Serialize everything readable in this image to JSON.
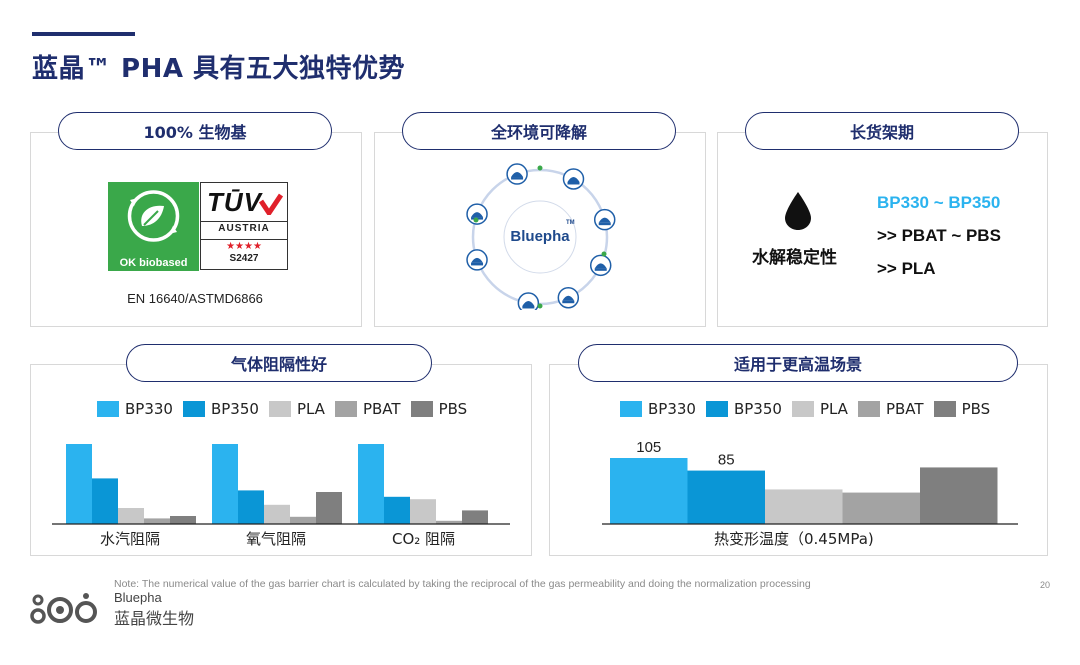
{
  "title": "蓝晶™ PHA 具有五大独特优势",
  "panels": {
    "biobased": {
      "label": "100% 生物基",
      "badge_text": "OK biobased",
      "tuv_top": "TŪV",
      "tuv_country": "AUSTRIA",
      "tuv_stars": "★★★★",
      "tuv_code": "S2427",
      "standard": "EN 16640/ASTMD6866"
    },
    "degradable": {
      "label": "全环境可降解",
      "center_brand": "Bluepha",
      "tm": "TM",
      "icons": [
        "soil-icon",
        "freshwater-icon",
        "ocean-icon",
        "industrial-compost-icon",
        "home-compost-icon",
        "landfill-icon",
        "anaerobic-icon",
        "sewage-icon"
      ]
    },
    "shelf": {
      "label": "长货架期",
      "subtitle": "水解稳定性",
      "line1": "BP330 ~ BP350",
      "line2": ">> PBAT ~ PBS",
      "line3": ">> PLA"
    },
    "barrier": {
      "label": "气体阻隔性好"
    },
    "heat": {
      "label": "适用于更高温场景"
    }
  },
  "colors": {
    "navy": "#1f2e6e",
    "bp330": "#2bb3ef",
    "bp350": "#0a96d6",
    "pla": "#c8c8c8",
    "pbat": "#a3a3a3",
    "pbs": "#7f7f7f",
    "green": "#3aa84a",
    "red": "#e0202a"
  },
  "chart_data": [
    {
      "type": "bar",
      "series": [
        {
          "name": "BP330",
          "values": [
            1.0,
            1.0,
            1.0
          ]
        },
        {
          "name": "BP350",
          "values": [
            0.57,
            0.42,
            0.34
          ]
        },
        {
          "name": "PLA",
          "values": [
            0.2,
            0.24,
            0.31
          ]
        },
        {
          "name": "PBAT",
          "values": [
            0.07,
            0.09,
            0.04
          ]
        },
        {
          "name": "PBS",
          "values": [
            0.1,
            0.4,
            0.17
          ]
        }
      ],
      "categories": [
        "水汽阻隔",
        "氧气阻隔",
        "CO₂ 阻隔"
      ],
      "ylim": [
        0,
        1
      ],
      "grid": false,
      "legend": "top"
    },
    {
      "type": "bar",
      "series": [
        {
          "name": "BP330",
          "values": [
            105
          ]
        },
        {
          "name": "BP350",
          "values": [
            85
          ]
        },
        {
          "name": "PLA",
          "values": [
            55
          ]
        },
        {
          "name": "PBAT",
          "values": [
            50
          ]
        },
        {
          "name": "PBS",
          "values": [
            90
          ]
        }
      ],
      "data_labels": [
        "105",
        "85",
        "",
        "",
        ""
      ],
      "categories": [
        "热变形温度（0.45MPa)"
      ],
      "ylim": [
        0,
        105
      ],
      "grid": false,
      "legend": "top"
    }
  ],
  "footer": {
    "note": "Note: The numerical value of the gas barrier chart is calculated by taking the reciprocal of the gas permeability and doing the normalization processing",
    "page": "20",
    "brand_en": "Bluepha",
    "brand_cn": "蓝晶微生物"
  }
}
